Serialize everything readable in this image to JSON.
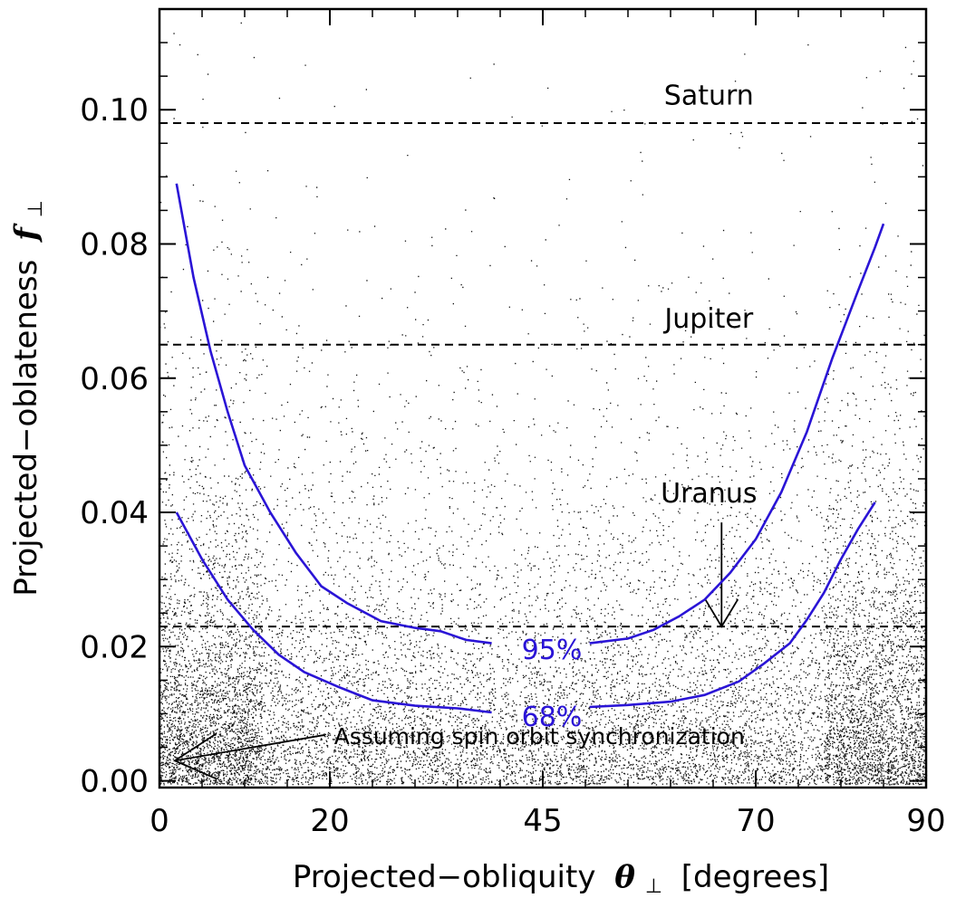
{
  "chart_data": {
    "type": "line",
    "title": "",
    "xlabel": "Projected−obliquity",
    "xlabel_symbol": "θ",
    "xlabel_sub": "⊥",
    "xlabel_unit": "[degrees]",
    "ylabel": "Projected−oblateness",
    "ylabel_symbol": "f",
    "ylabel_sub": "⊥",
    "xlim": [
      0,
      90
    ],
    "ylim": [
      -0.001,
      0.115
    ],
    "x_ticks": [
      0,
      20,
      45,
      70,
      90
    ],
    "x_tick_labels": [
      "0",
      "20",
      "45",
      "70",
      "90"
    ],
    "y_ticks": [
      0.0,
      0.02,
      0.04,
      0.06,
      0.08,
      0.1
    ],
    "y_tick_labels": [
      "0.00",
      "0.02",
      "0.04",
      "0.06",
      "0.08",
      "0.10"
    ],
    "reference_lines": [
      {
        "label": "Saturn",
        "y": 0.098,
        "label_x": 64.5,
        "label_y": 0.1008
      },
      {
        "label": "Jupiter",
        "y": 0.065,
        "label_x": 64.5,
        "label_y": 0.0675
      },
      {
        "label": "Uranus",
        "y": 0.023,
        "label_x": 64.5,
        "label_y": 0.0415
      }
    ],
    "series": [
      {
        "name": "95%",
        "color": "#2a14d6",
        "label_x": 45,
        "label_y": 0.0195,
        "segments": [
          [
            [
              2,
              0.089
            ],
            [
              4,
              0.075
            ],
            [
              6,
              0.064
            ],
            [
              8,
              0.055
            ],
            [
              10,
              0.047
            ],
            [
              13,
              0.04
            ],
            [
              16,
              0.034
            ],
            [
              19,
              0.029
            ],
            [
              22,
              0.0265
            ],
            [
              26,
              0.0238
            ],
            [
              30,
              0.0228
            ],
            [
              33,
              0.0223
            ],
            [
              36,
              0.021
            ],
            [
              39,
              0.0205
            ]
          ],
          [
            [
              50.5,
              0.0205
            ],
            [
              55,
              0.0212
            ],
            [
              58,
              0.0225
            ],
            [
              61,
              0.0245
            ],
            [
              64,
              0.027
            ],
            [
              67,
              0.031
            ],
            [
              70,
              0.036
            ],
            [
              73,
              0.043
            ],
            [
              76,
              0.052
            ],
            [
              79,
              0.063
            ],
            [
              82,
              0.073
            ],
            [
              84,
              0.0795
            ],
            [
              85,
              0.083
            ]
          ]
        ]
      },
      {
        "name": "68%",
        "color": "#2a14d6",
        "label_x": 45,
        "label_y": 0.0095,
        "segments": [
          [
            [
              2,
              0.04
            ],
            [
              5,
              0.033
            ],
            [
              8,
              0.027
            ],
            [
              11,
              0.0225
            ],
            [
              14,
              0.0188
            ],
            [
              17,
              0.0162
            ],
            [
              21,
              0.014
            ],
            [
              25,
              0.012
            ],
            [
              30,
              0.0112
            ],
            [
              35,
              0.0108
            ],
            [
              39,
              0.0102
            ]
          ],
          [
            [
              50.5,
              0.011
            ],
            [
              55,
              0.0113
            ],
            [
              60,
              0.0118
            ],
            [
              64,
              0.0128
            ],
            [
              68,
              0.0148
            ],
            [
              71,
              0.0175
            ],
            [
              74,
              0.0205
            ],
            [
              76,
              0.024
            ],
            [
              78,
              0.028
            ],
            [
              80,
              0.033
            ],
            [
              82,
              0.0375
            ],
            [
              84,
              0.0415
            ]
          ]
        ]
      }
    ],
    "annotations": [
      {
        "text": "Assuming spin orbit synchronization",
        "x": 20.5,
        "y": 0.0055,
        "arrow_to": [
          0.3,
          0.003
        ]
      }
    ],
    "legend": "none",
    "grid": false,
    "background": "scattered black dots (Monte Carlo samples), denser toward low oblateness"
  }
}
